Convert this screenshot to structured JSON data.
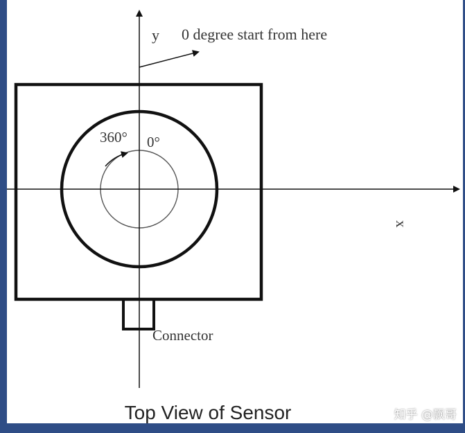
{
  "labels": {
    "y_axis": "y",
    "x_axis": "x",
    "start_note": "0 degree start from here",
    "angle_360": "360°",
    "angle_0": "0°",
    "connector": "Connector",
    "caption": "Top View of Sensor"
  },
  "watermark": "知乎 @飘哥"
}
